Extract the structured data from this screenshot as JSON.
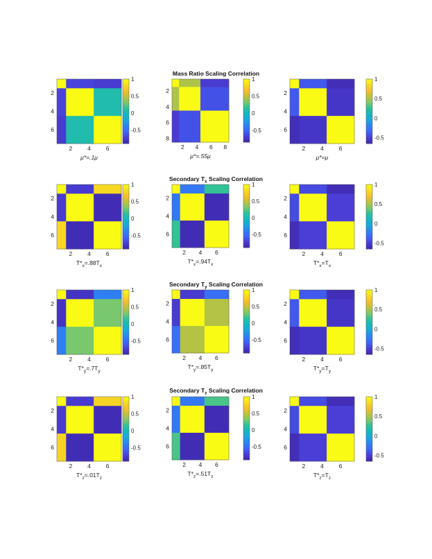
{
  "rows": [
    {
      "title": "Mass Ratio Scaling Correlation"
    },
    {
      "title": "Secondary T<sub>x</sub> Scaling Correlation"
    },
    {
      "title": "Secondary T<sub>y</sub> Scaling Correlation"
    },
    {
      "title": "Secondary T<sub>z</sub> Scaling Correlation"
    }
  ],
  "colormap": [
    "#3e26a8",
    "#4a3ed6",
    "#3d66f8",
    "#2c83f1",
    "#1ca5de",
    "#15b7c0",
    "#2cc19a",
    "#7dc86c",
    "#c0c13c",
    "#f5be2f",
    "#f7dc20",
    "#f9fb15"
  ],
  "chart_data": [
    {
      "type": "heatmap",
      "xlabel": "μ*=.1μ",
      "cbar_ticks": [
        1,
        0.5,
        0,
        -0.5
      ],
      "clim": [
        -0.9,
        1
      ],
      "blocks": [
        1,
        3,
        3
      ],
      "block_corr": [
        [
          1,
          -0.7,
          -0.75
        ],
        [
          -0.7,
          1,
          0.05
        ],
        [
          -0.75,
          0.05,
          1
        ]
      ],
      "ticks": [
        2,
        4,
        6
      ],
      "n": 7
    },
    {
      "type": "heatmap",
      "xlabel": "μ*=.55μ",
      "cbar_ticks": [
        1,
        0.5,
        0,
        -0.5
      ],
      "clim": [
        -0.85,
        1
      ],
      "blocks": [
        1,
        3,
        4
      ],
      "block_corr": [
        [
          1,
          0.45,
          -0.7
        ],
        [
          0.45,
          1,
          -0.6
        ],
        [
          -0.7,
          -0.6,
          1
        ]
      ],
      "ticks": [
        2,
        4,
        6,
        8
      ],
      "n": 8
    },
    {
      "type": "heatmap",
      "xlabel": "μ*=μ",
      "cbar_ticks": [
        1,
        0.5,
        0,
        -0.5
      ],
      "clim": [
        -0.65,
        1
      ],
      "blocks": [
        1,
        3,
        3
      ],
      "block_corr": [
        [
          1,
          -0.4,
          -0.6
        ],
        [
          -0.4,
          1,
          -0.55
        ],
        [
          -0.6,
          -0.55,
          1
        ]
      ],
      "ticks": [
        2,
        4,
        6
      ],
      "n": 7
    },
    {
      "type": "heatmap",
      "xlabel": "T*x=.88Tx",
      "cbar_ticks": [
        1,
        0.5,
        0,
        -0.5
      ],
      "clim": [
        -0.9,
        1
      ],
      "blocks": [
        1,
        3,
        3
      ],
      "block_corr": [
        [
          1,
          -0.75,
          0.8
        ],
        [
          -0.75,
          1,
          -0.85
        ],
        [
          0.8,
          -0.85,
          1
        ]
      ],
      "ticks": [
        2,
        4,
        6
      ],
      "n": 7
    },
    {
      "type": "heatmap",
      "xlabel": "T*x=.94Tx",
      "cbar_ticks": [
        1,
        0.5,
        0,
        -0.5
      ],
      "clim": [
        -0.9,
        1
      ],
      "blocks": [
        1,
        3,
        3
      ],
      "block_corr": [
        [
          1,
          -0.45,
          0.15
        ],
        [
          -0.45,
          1,
          -0.85
        ],
        [
          0.15,
          -0.85,
          1
        ]
      ],
      "ticks": [
        2,
        4,
        6
      ],
      "n": 7
    },
    {
      "type": "heatmap",
      "xlabel": "T*x=Tx",
      "cbar_ticks": [
        1,
        0.5,
        0,
        -0.5
      ],
      "clim": [
        -0.65,
        1
      ],
      "blocks": [
        1,
        3,
        3
      ],
      "block_corr": [
        [
          1,
          -0.45,
          -0.6
        ],
        [
          -0.45,
          1,
          -0.5
        ],
        [
          -0.6,
          -0.5,
          1
        ]
      ],
      "ticks": [
        2,
        4,
        6
      ],
      "n": 7
    },
    {
      "type": "heatmap",
      "xlabel": "T*y=.7Ty",
      "cbar_ticks": [
        1,
        0.5,
        0,
        -0.5
      ],
      "clim": [
        -0.9,
        1
      ],
      "blocks": [
        1,
        3,
        3
      ],
      "block_corr": [
        [
          1,
          -0.8,
          -0.4
        ],
        [
          -0.8,
          1,
          0.3
        ],
        [
          -0.4,
          0.3,
          1
        ]
      ],
      "ticks": [
        2,
        4,
        6
      ],
      "n": 7
    },
    {
      "type": "heatmap",
      "xlabel": "T*y=.85Ty",
      "cbar_ticks": [
        1,
        0.5,
        0,
        -0.5
      ],
      "clim": [
        -0.9,
        1
      ],
      "blocks": [
        1,
        3,
        3
      ],
      "block_corr": [
        [
          1,
          -0.75,
          -0.5
        ],
        [
          -0.75,
          1,
          0.45
        ],
        [
          -0.5,
          0.45,
          1
        ]
      ],
      "ticks": [
        2,
        4,
        6
      ],
      "n": 7
    },
    {
      "type": "heatmap",
      "xlabel": "T*y=Ty",
      "cbar_ticks": [
        1,
        0.5,
        0,
        -0.5
      ],
      "clim": [
        -0.65,
        1
      ],
      "blocks": [
        1,
        3,
        3
      ],
      "block_corr": [
        [
          1,
          -0.4,
          -0.6
        ],
        [
          -0.4,
          1,
          -0.55
        ],
        [
          -0.6,
          -0.55,
          1
        ]
      ],
      "ticks": [
        2,
        4,
        6
      ],
      "n": 7
    },
    {
      "type": "heatmap",
      "xlabel": "T*z=.01Tz",
      "cbar_ticks": [
        1,
        0.5,
        0,
        -0.5
      ],
      "clim": [
        -0.9,
        1
      ],
      "blocks": [
        1,
        3,
        3
      ],
      "block_corr": [
        [
          1,
          -0.75,
          0.78
        ],
        [
          -0.75,
          1,
          -0.85
        ],
        [
          0.78,
          -0.85,
          1
        ]
      ],
      "ticks": [
        2,
        4,
        6
      ],
      "n": 7
    },
    {
      "type": "heatmap",
      "xlabel": "T*z=.51Tz",
      "cbar_ticks": [
        1,
        0.5,
        0,
        -0.5
      ],
      "clim": [
        -0.9,
        1
      ],
      "blocks": [
        1,
        3,
        3
      ],
      "block_corr": [
        [
          1,
          -0.45,
          0.2
        ],
        [
          -0.45,
          1,
          -0.85
        ],
        [
          0.2,
          -0.85,
          1
        ]
      ],
      "ticks": [
        2,
        4,
        6
      ],
      "n": 7
    },
    {
      "type": "heatmap",
      "xlabel": "T*z=Tz",
      "cbar_ticks": [
        1,
        0.5,
        0,
        -0.5
      ],
      "clim": [
        -0.65,
        1
      ],
      "blocks": [
        1,
        3,
        3
      ],
      "block_corr": [
        [
          1,
          -0.45,
          -0.6
        ],
        [
          -0.45,
          1,
          -0.5
        ],
        [
          -0.6,
          -0.5,
          1
        ]
      ],
      "ticks": [
        2,
        4,
        6
      ],
      "n": 7
    }
  ]
}
